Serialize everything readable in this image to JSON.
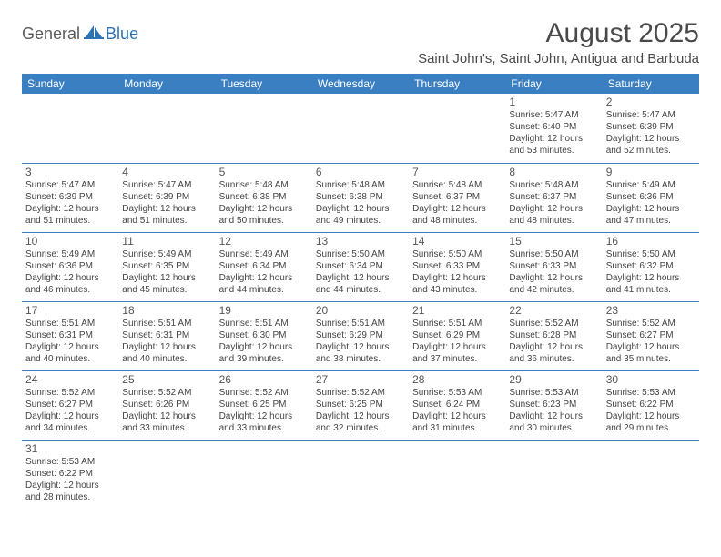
{
  "logo": {
    "part1": "General",
    "part2": "Blue"
  },
  "title": "August 2025",
  "location": "Saint John's, Saint John, Antigua and Barbuda",
  "colors": {
    "header_bg": "#3a7fc1",
    "header_text": "#ffffff",
    "row_border": "#3a7fc1",
    "logo_gray": "#5a5a5a",
    "logo_blue": "#2d72b5",
    "title_color": "#4a4a4a"
  },
  "weekdays": [
    "Sunday",
    "Monday",
    "Tuesday",
    "Wednesday",
    "Thursday",
    "Friday",
    "Saturday"
  ],
  "cells": [
    [
      null,
      null,
      null,
      null,
      null,
      {
        "n": "1",
        "sunrise": "5:47 AM",
        "sunset": "6:40 PM",
        "dl": "12 hours and 53 minutes."
      },
      {
        "n": "2",
        "sunrise": "5:47 AM",
        "sunset": "6:39 PM",
        "dl": "12 hours and 52 minutes."
      }
    ],
    [
      {
        "n": "3",
        "sunrise": "5:47 AM",
        "sunset": "6:39 PM",
        "dl": "12 hours and 51 minutes."
      },
      {
        "n": "4",
        "sunrise": "5:47 AM",
        "sunset": "6:39 PM",
        "dl": "12 hours and 51 minutes."
      },
      {
        "n": "5",
        "sunrise": "5:48 AM",
        "sunset": "6:38 PM",
        "dl": "12 hours and 50 minutes."
      },
      {
        "n": "6",
        "sunrise": "5:48 AM",
        "sunset": "6:38 PM",
        "dl": "12 hours and 49 minutes."
      },
      {
        "n": "7",
        "sunrise": "5:48 AM",
        "sunset": "6:37 PM",
        "dl": "12 hours and 48 minutes."
      },
      {
        "n": "8",
        "sunrise": "5:48 AM",
        "sunset": "6:37 PM",
        "dl": "12 hours and 48 minutes."
      },
      {
        "n": "9",
        "sunrise": "5:49 AM",
        "sunset": "6:36 PM",
        "dl": "12 hours and 47 minutes."
      }
    ],
    [
      {
        "n": "10",
        "sunrise": "5:49 AM",
        "sunset": "6:36 PM",
        "dl": "12 hours and 46 minutes."
      },
      {
        "n": "11",
        "sunrise": "5:49 AM",
        "sunset": "6:35 PM",
        "dl": "12 hours and 45 minutes."
      },
      {
        "n": "12",
        "sunrise": "5:49 AM",
        "sunset": "6:34 PM",
        "dl": "12 hours and 44 minutes."
      },
      {
        "n": "13",
        "sunrise": "5:50 AM",
        "sunset": "6:34 PM",
        "dl": "12 hours and 44 minutes."
      },
      {
        "n": "14",
        "sunrise": "5:50 AM",
        "sunset": "6:33 PM",
        "dl": "12 hours and 43 minutes."
      },
      {
        "n": "15",
        "sunrise": "5:50 AM",
        "sunset": "6:33 PM",
        "dl": "12 hours and 42 minutes."
      },
      {
        "n": "16",
        "sunrise": "5:50 AM",
        "sunset": "6:32 PM",
        "dl": "12 hours and 41 minutes."
      }
    ],
    [
      {
        "n": "17",
        "sunrise": "5:51 AM",
        "sunset": "6:31 PM",
        "dl": "12 hours and 40 minutes."
      },
      {
        "n": "18",
        "sunrise": "5:51 AM",
        "sunset": "6:31 PM",
        "dl": "12 hours and 40 minutes."
      },
      {
        "n": "19",
        "sunrise": "5:51 AM",
        "sunset": "6:30 PM",
        "dl": "12 hours and 39 minutes."
      },
      {
        "n": "20",
        "sunrise": "5:51 AM",
        "sunset": "6:29 PM",
        "dl": "12 hours and 38 minutes."
      },
      {
        "n": "21",
        "sunrise": "5:51 AM",
        "sunset": "6:29 PM",
        "dl": "12 hours and 37 minutes."
      },
      {
        "n": "22",
        "sunrise": "5:52 AM",
        "sunset": "6:28 PM",
        "dl": "12 hours and 36 minutes."
      },
      {
        "n": "23",
        "sunrise": "5:52 AM",
        "sunset": "6:27 PM",
        "dl": "12 hours and 35 minutes."
      }
    ],
    [
      {
        "n": "24",
        "sunrise": "5:52 AM",
        "sunset": "6:27 PM",
        "dl": "12 hours and 34 minutes."
      },
      {
        "n": "25",
        "sunrise": "5:52 AM",
        "sunset": "6:26 PM",
        "dl": "12 hours and 33 minutes."
      },
      {
        "n": "26",
        "sunrise": "5:52 AM",
        "sunset": "6:25 PM",
        "dl": "12 hours and 33 minutes."
      },
      {
        "n": "27",
        "sunrise": "5:52 AM",
        "sunset": "6:25 PM",
        "dl": "12 hours and 32 minutes."
      },
      {
        "n": "28",
        "sunrise": "5:53 AM",
        "sunset": "6:24 PM",
        "dl": "12 hours and 31 minutes."
      },
      {
        "n": "29",
        "sunrise": "5:53 AM",
        "sunset": "6:23 PM",
        "dl": "12 hours and 30 minutes."
      },
      {
        "n": "30",
        "sunrise": "5:53 AM",
        "sunset": "6:22 PM",
        "dl": "12 hours and 29 minutes."
      }
    ],
    [
      {
        "n": "31",
        "sunrise": "5:53 AM",
        "sunset": "6:22 PM",
        "dl": "12 hours and 28 minutes."
      },
      null,
      null,
      null,
      null,
      null,
      null
    ]
  ],
  "labels": {
    "sunrise": "Sunrise:",
    "sunset": "Sunset:",
    "daylight": "Daylight:"
  }
}
